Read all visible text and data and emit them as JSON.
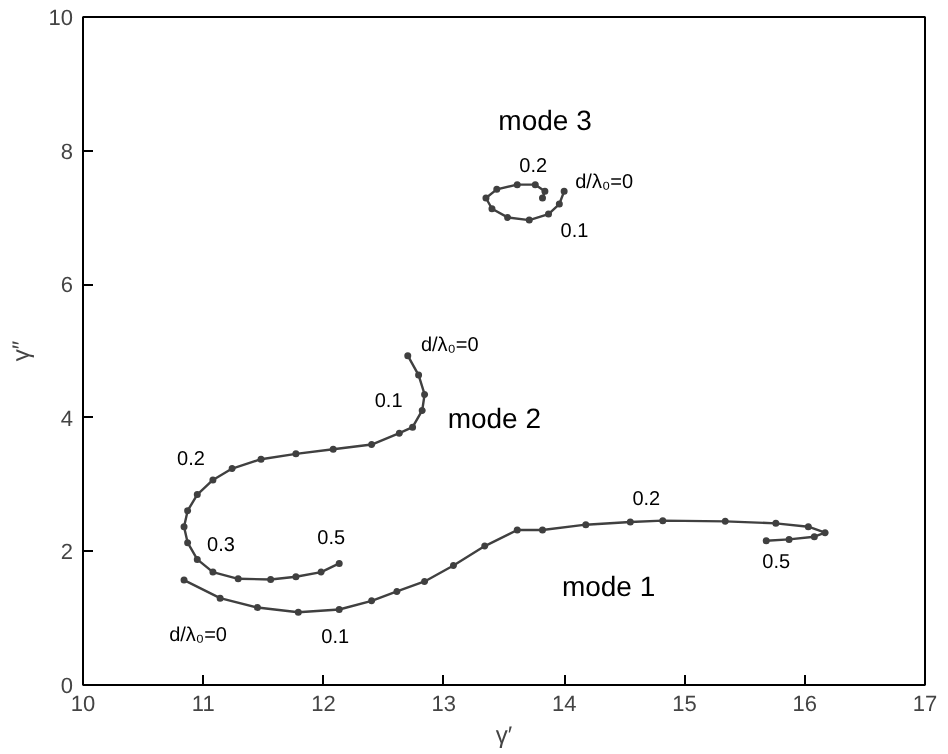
{
  "chart_data": {
    "type": "line",
    "xlabel": "γ′",
    "ylabel": "γ″",
    "xlim": [
      10,
      17
    ],
    "ylim": [
      0,
      10
    ],
    "xticks": [
      10,
      11,
      12,
      13,
      14,
      15,
      16,
      17
    ],
    "yticks": [
      0,
      2,
      4,
      6,
      8,
      10
    ],
    "grid": false,
    "marker": "circle",
    "line_style": "solid",
    "series": [
      {
        "color": "#404040",
        "x": [
          10.84,
          11.14,
          11.45,
          11.79,
          12.13,
          12.4,
          12.61,
          12.84,
          13.08,
          13.34,
          13.61,
          13.82,
          14.18,
          14.55,
          14.82,
          15.34,
          15.76,
          16.03,
          16.17,
          16.08,
          15.87,
          15.68
        ],
        "values": [
          1.57,
          1.3,
          1.16,
          1.09,
          1.13,
          1.26,
          1.4,
          1.55,
          1.79,
          2.08,
          2.32,
          2.32,
          2.4,
          2.44,
          2.46,
          2.45,
          2.42,
          2.37,
          2.28,
          2.22,
          2.18,
          2.16
        ]
      },
      {
        "color": "#404040",
        "x": [
          12.7,
          12.79,
          12.84,
          12.82,
          12.74,
          12.63,
          12.4,
          12.08,
          11.77,
          11.48,
          11.24,
          11.08,
          10.95,
          10.87,
          10.84,
          10.87,
          10.95,
          11.08,
          11.29,
          11.56,
          11.77,
          11.98,
          12.13
        ],
        "values": [
          4.93,
          4.64,
          4.35,
          4.11,
          3.86,
          3.77,
          3.6,
          3.53,
          3.46,
          3.38,
          3.24,
          3.07,
          2.85,
          2.61,
          2.37,
          2.13,
          1.88,
          1.69,
          1.59,
          1.58,
          1.62,
          1.69,
          1.82
        ]
      },
      {
        "color": "#404040",
        "x": [
          14.0,
          13.96,
          13.87,
          13.71,
          13.53,
          13.4,
          13.35,
          13.44,
          13.61,
          13.76,
          13.84,
          13.82
        ],
        "values": [
          7.39,
          7.2,
          7.05,
          6.96,
          7.0,
          7.13,
          7.29,
          7.42,
          7.49,
          7.49,
          7.39,
          7.29
        ]
      }
    ],
    "annotations": [
      {
        "text": "d/λ₀=0",
        "x": 10.84,
        "y": 1.57
      },
      {
        "text": "0.1",
        "x": 12.13,
        "y": 1.13
      },
      {
        "text": "0.2",
        "x": 14.55,
        "y": 2.44
      },
      {
        "text": "0.5",
        "x": 15.68,
        "y": 2.16
      },
      "mode 1",
      {
        "text": "d/λ₀=0",
        "x": 12.7,
        "y": 4.93
      },
      {
        "text": "0.1",
        "x": 12.84,
        "y": 4.35
      },
      {
        "text": "0.2",
        "x": 11.08,
        "y": 3.07
      },
      {
        "text": "0.3",
        "x": 11.08,
        "y": 1.69
      },
      {
        "text": "0.5",
        "x": 12.13,
        "y": 1.82
      },
      "mode 2",
      {
        "text": "0.2",
        "x": 13.76,
        "y": 7.49
      },
      {
        "text": "d/λ₀=0",
        "x": 14.0,
        "y": 7.39
      },
      {
        "text": "0.1",
        "x": 13.87,
        "y": 7.05
      },
      "mode 3"
    ]
  }
}
